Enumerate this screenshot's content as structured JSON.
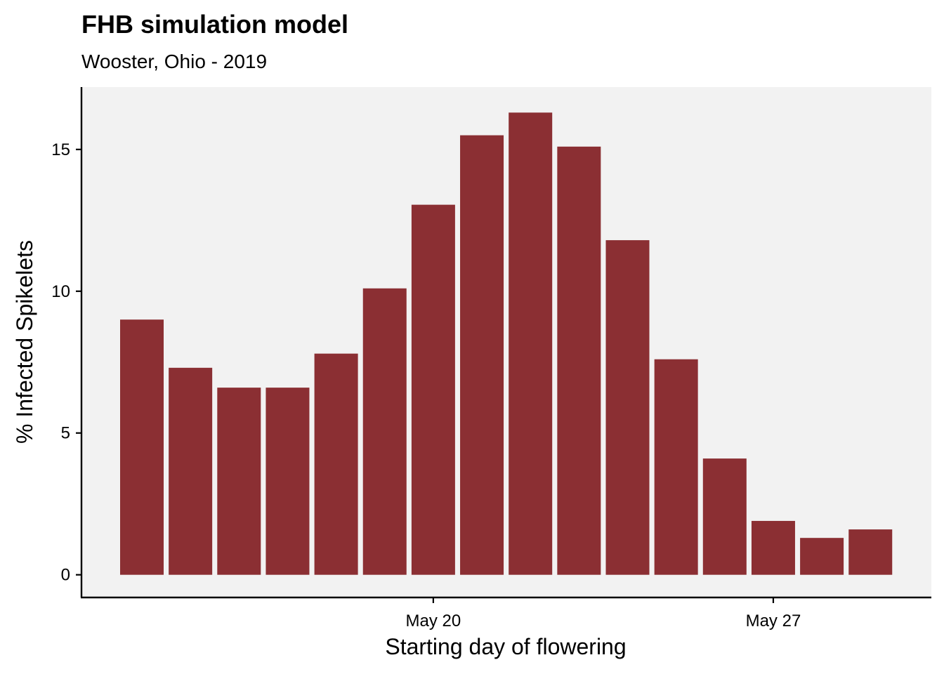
{
  "chart_data": {
    "type": "bar",
    "title": "FHB simulation model",
    "subtitle": "Wooster, Ohio - 2019",
    "xlabel": "Starting day of flowering",
    "ylabel": "% Infected Spikelets",
    "x": [
      "2019-05-14",
      "2019-05-15",
      "2019-05-16",
      "2019-05-17",
      "2019-05-18",
      "2019-05-19",
      "2019-05-20",
      "2019-05-21",
      "2019-05-22",
      "2019-05-23",
      "2019-05-24",
      "2019-05-25",
      "2019-05-26",
      "2019-05-27",
      "2019-05-28",
      "2019-05-29"
    ],
    "values": [
      9.0,
      7.3,
      6.6,
      6.6,
      7.8,
      10.1,
      13.05,
      15.5,
      16.3,
      15.1,
      11.8,
      7.6,
      4.1,
      1.9,
      1.3,
      1.6
    ],
    "x_tick_labels": [
      "May 20",
      "May 27"
    ],
    "y_ticks": [
      0,
      5,
      10,
      15
    ],
    "ylim": [
      -0.8,
      17.2
    ],
    "bar_color": "#8b2f33",
    "panel_background": "#f2f2f2",
    "grid": false,
    "legend": "none"
  }
}
